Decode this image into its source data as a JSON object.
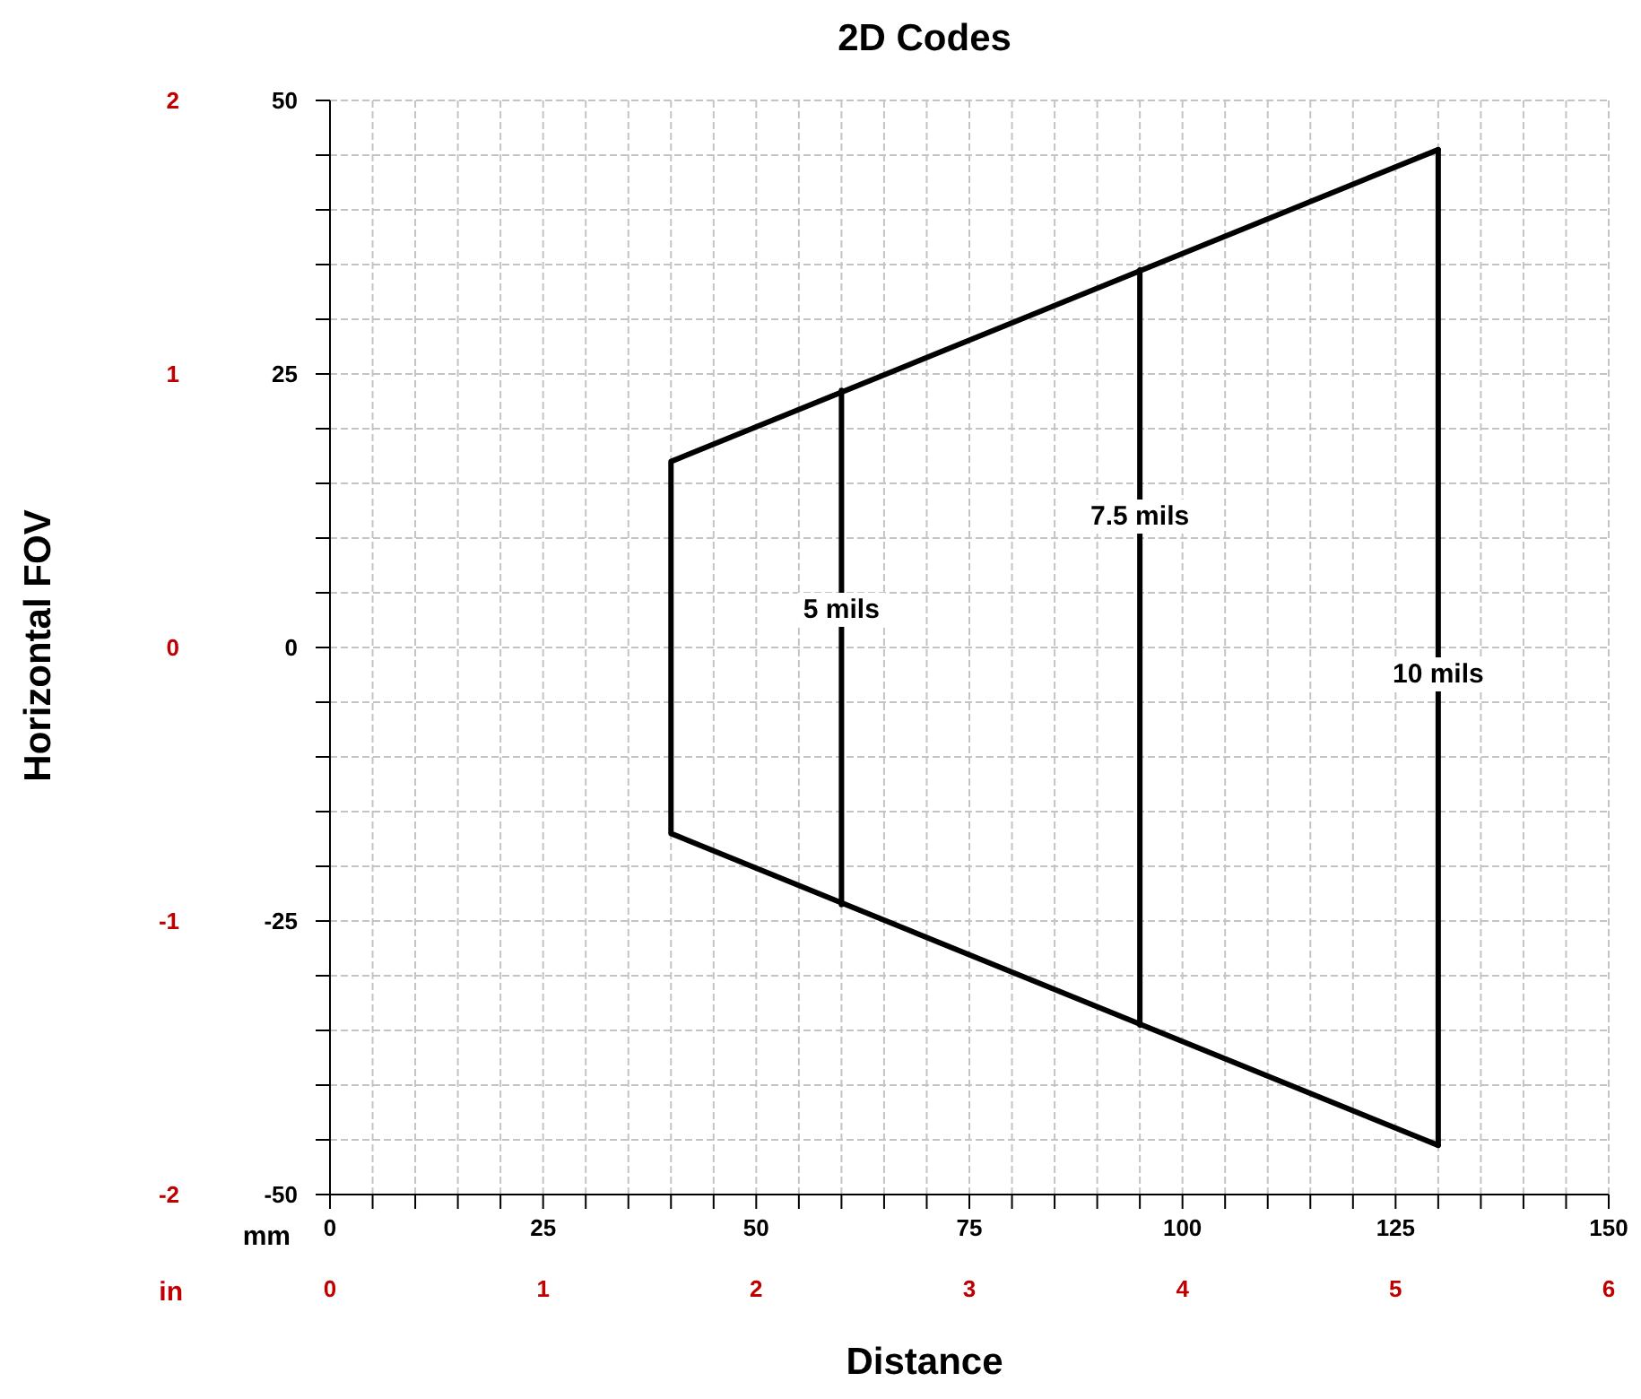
{
  "chart_data": {
    "type": "line",
    "title": "2D Codes",
    "xlabel": "Distance",
    "y2label": "Horizontal FOV",
    "x2label": "in",
    "xlim": [
      0,
      150
    ],
    "xticks": [
      0,
      {
        "value": 5,
        "label": null
      },
      {
        "value": 10,
        "label": null
      },
      {
        "value": 15,
        "label": null
      },
      {
        "value": 20,
        "label": null
      },
      25,
      {
        "value": 30,
        "label": null
      },
      {
        "value": 35,
        "label": null
      },
      {
        "value": 40,
        "label": null
      },
      {
        "value": 45,
        "label": null
      },
      50,
      {
        "value": 55,
        "label": null
      },
      {
        "value": 60,
        "label": null
      },
      {
        "value": 65,
        "label": null
      },
      {
        "value": 70,
        "label": null
      },
      75,
      {
        "value": 80,
        "label": null
      },
      {
        "value": 85,
        "label": null
      },
      {
        "value": 90,
        "label": null
      },
      {
        "value": 95,
        "label": null
      },
      100,
      {
        "value": 105,
        "label": null
      },
      {
        "value": 110,
        "label": null
      },
      {
        "value": 115,
        "label": null
      },
      {
        "value": 120,
        "label": null
      },
      125,
      {
        "value": 130,
        "label": null
      },
      {
        "value": 135,
        "label": null
      },
      {
        "value": 140,
        "label": null
      },
      {
        "value": 145,
        "label": null
      },
      150
    ],
    "ylim": [
      -50,
      50
    ],
    "yticks": [
      -50,
      {
        "value": -45,
        "label": null
      },
      {
        "value": -40,
        "label": null
      },
      {
        "value": -35,
        "label": null
      },
      {
        "value": -30,
        "label": null
      },
      -25,
      {
        "value": -20,
        "label": null
      },
      {
        "value": -15,
        "label": null
      },
      {
        "value": -10,
        "label": null
      },
      {
        "value": -5,
        "label": null
      },
      0,
      {
        "value": 5,
        "label": null
      },
      {
        "value": 10,
        "label": null
      },
      {
        "value": 15,
        "label": null
      },
      {
        "value": 20,
        "label": null
      },
      25,
      {
        "value": 30,
        "label": null
      },
      {
        "value": 35,
        "label": null
      },
      {
        "value": 40,
        "label": null
      },
      {
        "value": 45,
        "label": null
      },
      50
    ],
    "x2lim": [
      0,
      6
    ],
    "x2ticks": [
      0,
      1,
      2,
      3,
      4,
      5,
      6
    ],
    "y2lim": [
      -2,
      2
    ],
    "y2ticks": [
      -2,
      -1,
      0,
      1,
      2
    ],
    "grid": true,
    "series": [
      {
        "color": "#000000",
        "x": [
          130,
          40,
          40,
          130
        ],
        "values": [
          45.5,
          17,
          -17,
          -45.5
        ]
      },
      {
        "color": "#000000",
        "x": [
          60,
          60
        ],
        "values": [
          23.5,
          -23.5
        ]
      },
      {
        "color": "#000000",
        "x": [
          95,
          95
        ],
        "values": [
          34.5,
          -34.5
        ]
      },
      {
        "color": "#000000",
        "x": [
          130,
          130
        ],
        "values": [
          45.5,
          -45.5
        ]
      }
    ],
    "annotations": [
      "mm",
      {
        "text": "5 mils",
        "x": 60,
        "y": 3.5
      },
      {
        "text": "7.5 mils",
        "x": 95,
        "y": 12
      },
      {
        "text": "10 mils",
        "x": 130,
        "y": -2.5
      }
    ]
  }
}
